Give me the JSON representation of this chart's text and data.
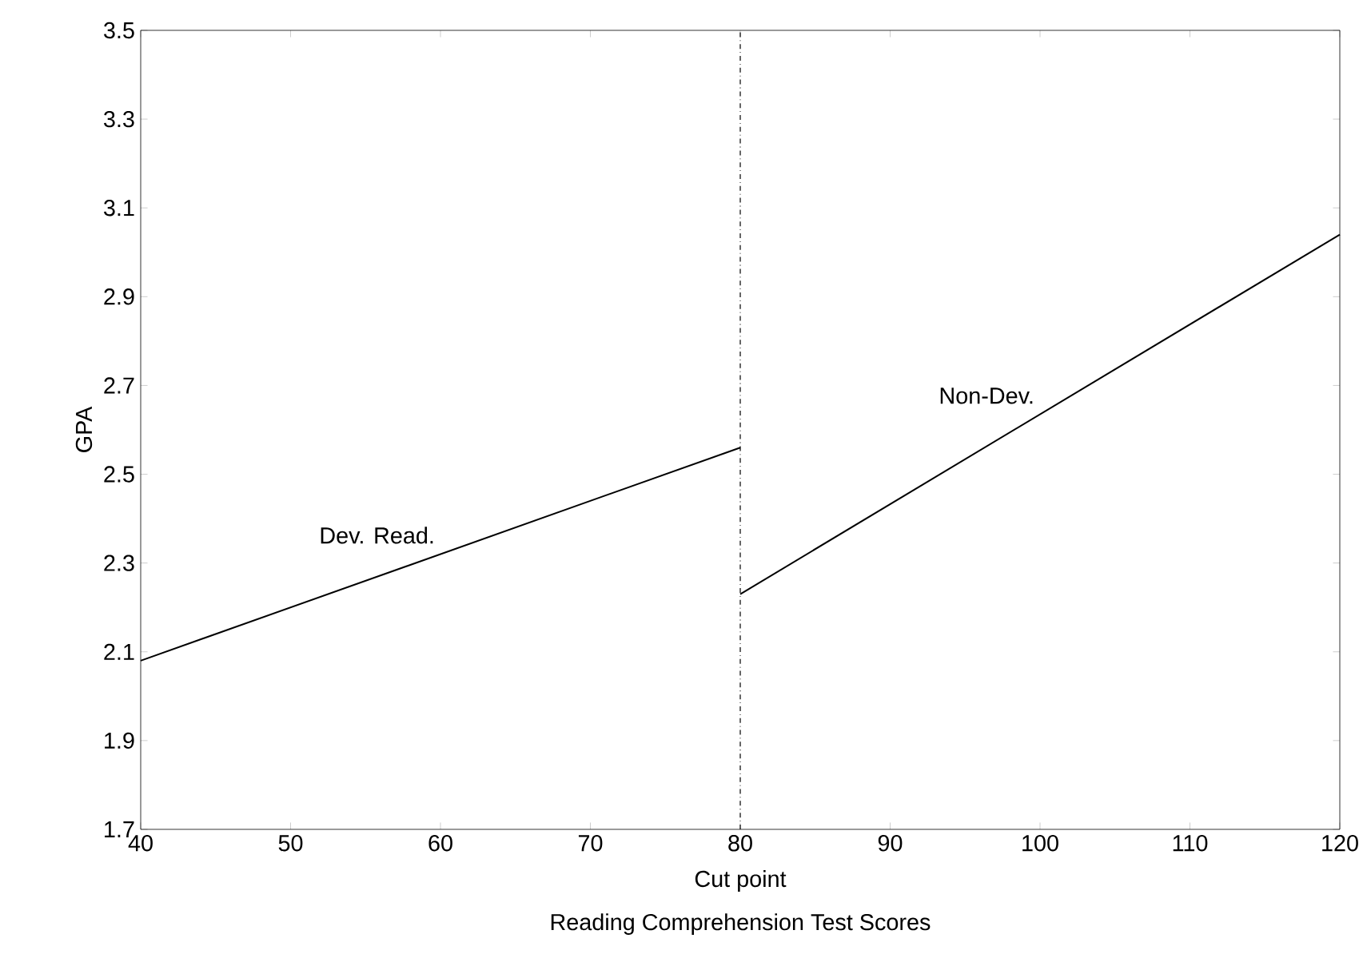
{
  "chart_data": {
    "type": "line",
    "xlabel": "Reading Comprehension Test Scores",
    "ylabel": "GPA",
    "xlim": [
      40,
      120
    ],
    "ylim": [
      1.7,
      3.5
    ],
    "xticks": [
      40,
      50,
      60,
      70,
      80,
      90,
      100,
      110,
      120
    ],
    "yticks": [
      1.7,
      1.9,
      2.1,
      2.3,
      2.5,
      2.7,
      2.9,
      3.1,
      3.3,
      3.5
    ],
    "series": [
      {
        "name": "Dev. Read.",
        "color": "#000000",
        "x": [
          40,
          80
        ],
        "values": [
          2.08,
          2.56
        ]
      },
      {
        "name": "Non-Dev.",
        "color": "#000000",
        "x": [
          80,
          120
        ],
        "values": [
          2.23,
          3.04
        ]
      }
    ],
    "ref_lines": [
      {
        "axis": "x",
        "value": 80,
        "label": "Cut point",
        "line_style": "dashdot"
      }
    ]
  }
}
